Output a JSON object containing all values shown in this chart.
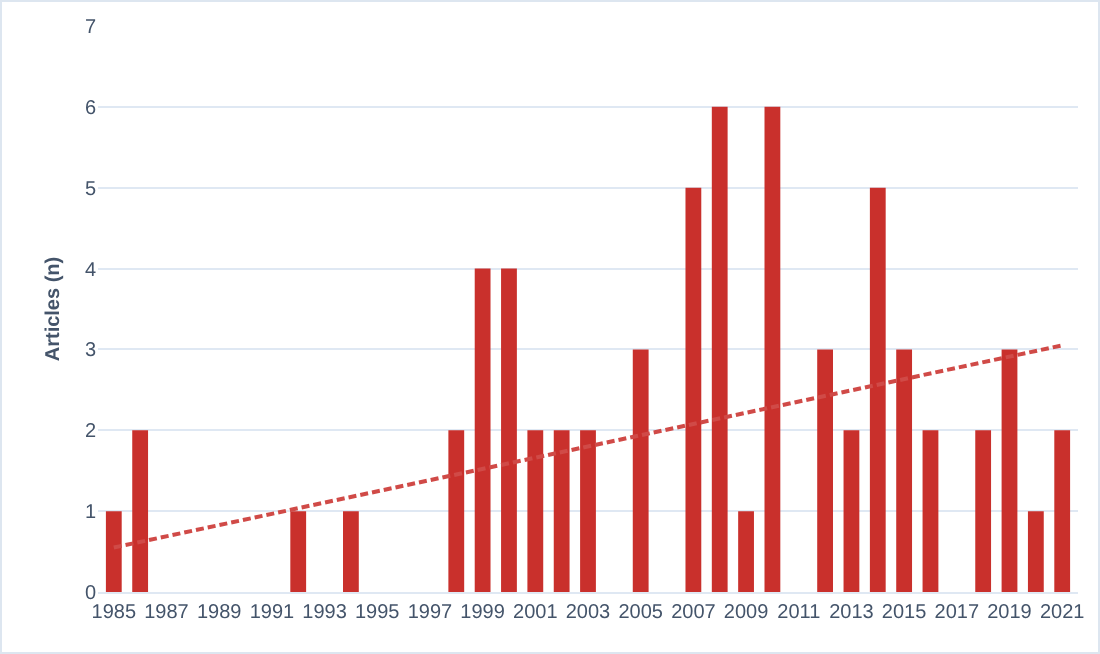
{
  "chart_data": {
    "type": "bar",
    "ylabel": "Articles (n)",
    "x": [
      1985,
      1986,
      1992,
      1994,
      1998,
      1999,
      2000,
      2001,
      2002,
      2003,
      2005,
      2007,
      2008,
      2009,
      2010,
      2012,
      2013,
      2014,
      2015,
      2016,
      2018,
      2019,
      2020,
      2021
    ],
    "series": [
      {
        "color": "#c9302c",
        "values": [
          1,
          2,
          1,
          1,
          2,
          4,
          4,
          2,
          2,
          2,
          3,
          5,
          6,
          1,
          6,
          3,
          2,
          5,
          3,
          2,
          2,
          3,
          1,
          2
        ]
      },
      {
        "type": "line",
        "color": "#d04a47",
        "line_style": "dashed",
        "x": [
          1985,
          2021
        ],
        "values": [
          0.55,
          3.05
        ]
      }
    ],
    "xlim": [
      1984.4,
      2021.6
    ],
    "xticks": [
      1985,
      1987,
      1989,
      1991,
      1993,
      1995,
      1997,
      1999,
      2001,
      2003,
      2005,
      2007,
      2009,
      2011,
      2013,
      2015,
      2017,
      2019,
      2021
    ],
    "ylim": [
      0,
      7
    ],
    "yticks": [
      0,
      1,
      2,
      3,
      4,
      5,
      6,
      7
    ],
    "grid": "y"
  }
}
